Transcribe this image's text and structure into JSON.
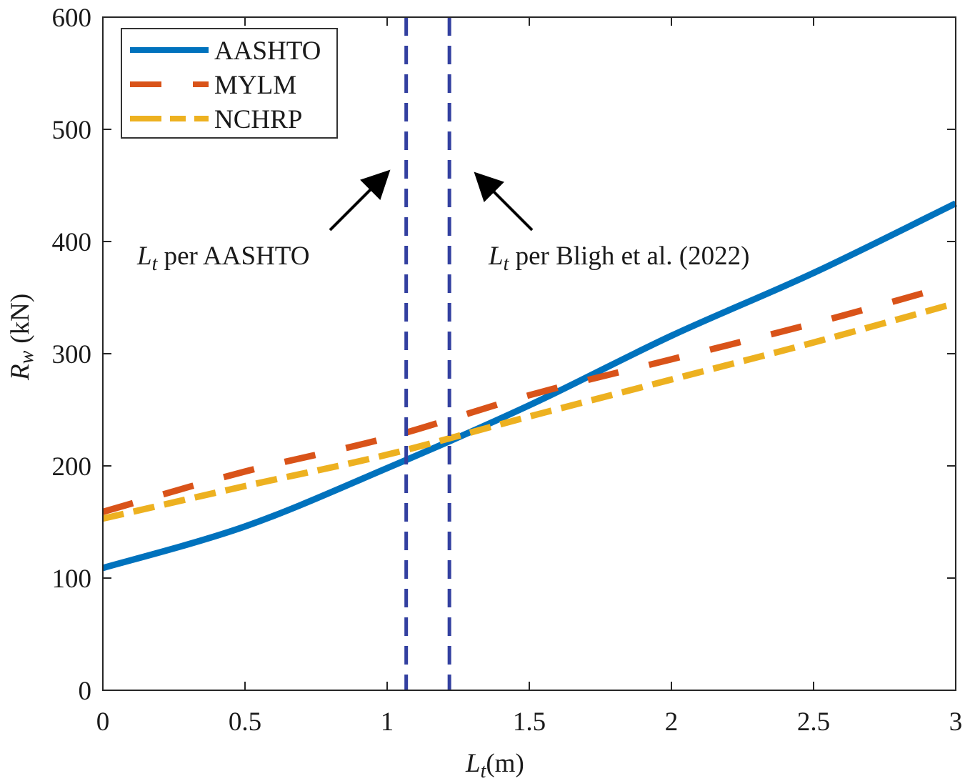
{
  "chart_data": {
    "type": "line",
    "title": "",
    "xlabel": {
      "italic": "L",
      "sub": "t",
      "suffix": "(m)"
    },
    "ylabel": {
      "italic": "R",
      "sub": "w",
      "suffix": "(kN)"
    },
    "xlim": [
      0,
      3
    ],
    "ylim": [
      0,
      600
    ],
    "grid": false,
    "x_ticks": [
      0,
      0.5,
      1,
      1.5,
      2,
      2.5,
      3
    ],
    "x_tick_labels": [
      "0",
      "0.5",
      "1",
      "1.5",
      "2",
      "2.5",
      "3"
    ],
    "y_ticks": [
      0,
      100,
      200,
      300,
      400,
      500,
      600
    ],
    "y_tick_labels": [
      "0",
      "100",
      "200",
      "300",
      "400",
      "500",
      "600"
    ],
    "legend": {
      "position": "top-left",
      "entries": [
        "AASHTO",
        "MYLM",
        "NCHRP"
      ]
    },
    "series": [
      {
        "name": "AASHTO",
        "color": "#0072BD",
        "style": "solid",
        "x": [
          0,
          0.5,
          1,
          1.5,
          2,
          2.5,
          3
        ],
        "values": [
          109,
          146,
          198,
          254,
          316,
          372,
          434
        ]
      },
      {
        "name": "MYLM",
        "color": "#D95319",
        "style": "long-dash",
        "x": [
          0,
          0.5,
          1,
          1.5,
          2,
          2.5,
          2.9
        ],
        "values": [
          159,
          195,
          225,
          263,
          295,
          327,
          355
        ]
      },
      {
        "name": "NCHRP",
        "color": "#EDB120",
        "style": "short-dash",
        "x": [
          0,
          0.5,
          1,
          1.5,
          2,
          2.5,
          3
        ],
        "values": [
          153,
          182,
          210,
          244,
          277,
          310,
          345
        ]
      }
    ],
    "vertical_lines": [
      {
        "name": "Lt-AASHTO",
        "x": 1.067,
        "color": "#3340A0"
      },
      {
        "name": "Lt-Bligh",
        "x": 1.219,
        "color": "#3340A0"
      }
    ],
    "annotations": [
      {
        "italic": "L",
        "sub": "t",
        "text": " per AASHTO",
        "points_to": "Lt-AASHTO"
      },
      {
        "italic": "L",
        "sub": "t",
        "text": " per Bligh et al. (2022)",
        "points_to": "Lt-Bligh"
      }
    ]
  }
}
